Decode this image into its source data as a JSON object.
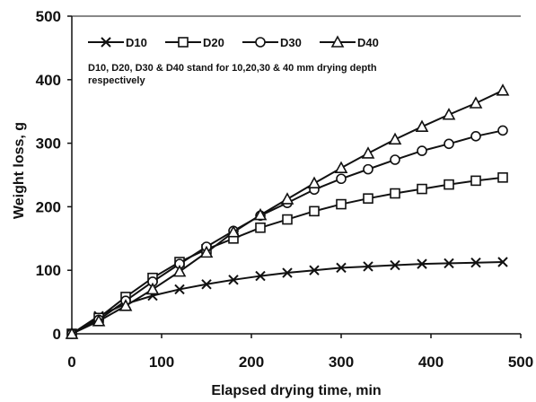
{
  "chart_data": {
    "type": "line",
    "title": "",
    "xlabel": "Elapsed drying time, min",
    "ylabel": "Weight loss, g",
    "xlim": [
      0,
      500
    ],
    "ylim": [
      0,
      500
    ],
    "xticks": [
      0,
      100,
      200,
      300,
      400,
      500
    ],
    "yticks": [
      0,
      100,
      200,
      300,
      400,
      500
    ],
    "x": [
      0,
      30,
      60,
      90,
      120,
      150,
      180,
      210,
      240,
      270,
      300,
      330,
      360,
      390,
      420,
      450,
      480
    ],
    "series": [
      {
        "name": "D10",
        "marker": "x",
        "values": [
          0,
          28,
          47,
          60,
          70,
          78,
          85,
          91,
          96,
          100,
          104,
          106,
          108,
          110,
          111,
          112,
          113
        ]
      },
      {
        "name": "D20",
        "marker": "square",
        "values": [
          0,
          25,
          58,
          88,
          113,
          133,
          150,
          167,
          180,
          193,
          204,
          213,
          221,
          228,
          235,
          241,
          246
        ]
      },
      {
        "name": "D30",
        "marker": "circle",
        "values": [
          0,
          22,
          52,
          82,
          110,
          137,
          162,
          186,
          206,
          227,
          244,
          259,
          274,
          288,
          299,
          311,
          320
        ]
      },
      {
        "name": "D40",
        "marker": "triangle",
        "values": [
          0,
          20,
          44,
          70,
          98,
          128,
          160,
          187,
          212,
          237,
          261,
          284,
          306,
          326,
          345,
          363,
          383
        ]
      }
    ],
    "legend_position": "top-left",
    "annotation": "D10, D20, D30 & D40 stand for 10,20,30 & 40 mm drying depth respectively",
    "annotation_lines": [
      "D10, D20, D30 & D40 stand for 10,20,30 & 40 mm drying depth",
      "respectively"
    ],
    "grid": false
  }
}
